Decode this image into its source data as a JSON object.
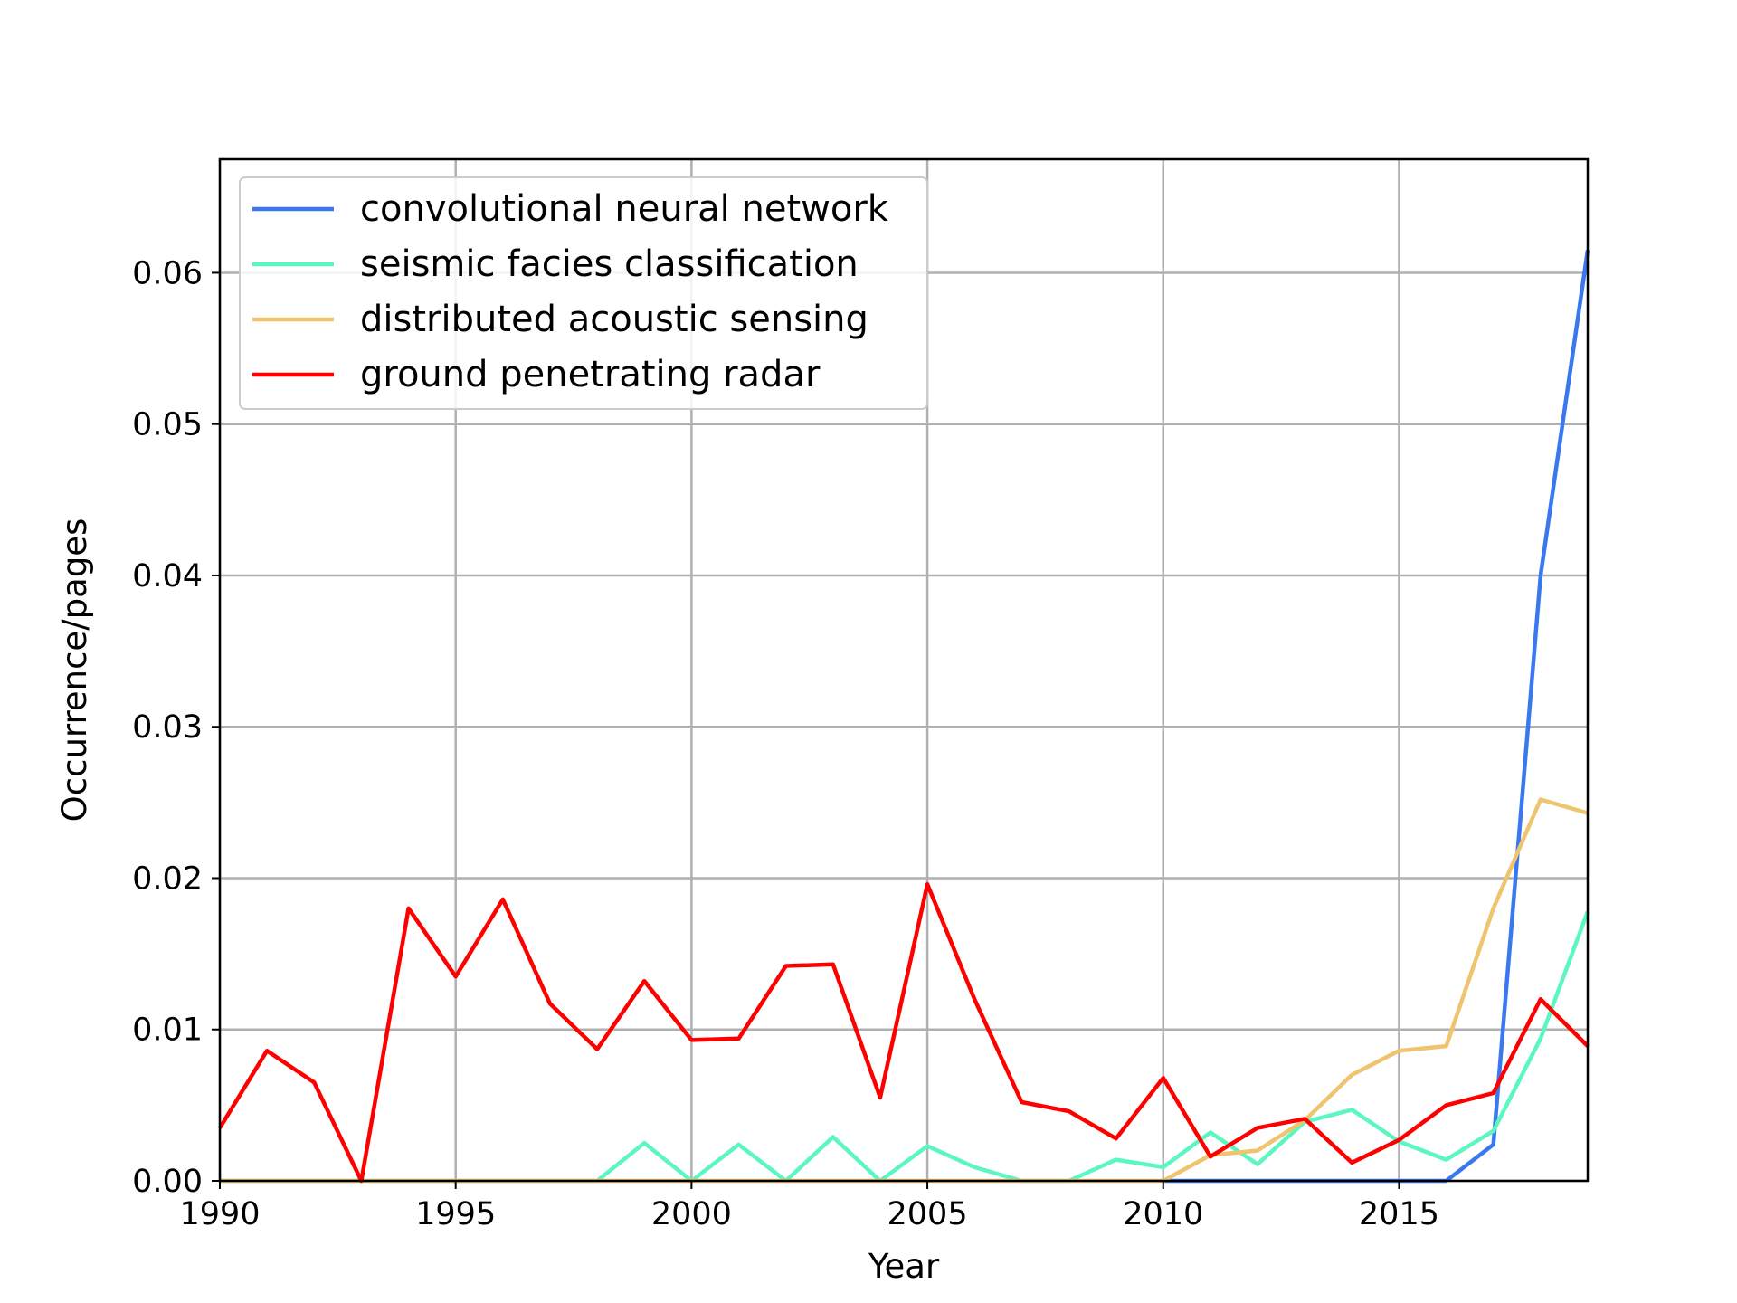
{
  "chart_data": {
    "type": "line",
    "title": "",
    "xlabel": "Year",
    "ylabel": "Occurrence/pages",
    "xlim": [
      1990,
      2019
    ],
    "ylim": [
      0,
      0.0675
    ],
    "grid": true,
    "legend_position": "upper-left",
    "x": [
      1990,
      1991,
      1992,
      1993,
      1994,
      1995,
      1996,
      1997,
      1998,
      1999,
      2000,
      2001,
      2002,
      2003,
      2004,
      2005,
      2006,
      2007,
      2008,
      2009,
      2010,
      2011,
      2012,
      2013,
      2014,
      2015,
      2016,
      2017,
      2018,
      2019
    ],
    "x_ticks": [
      1990,
      1995,
      2000,
      2005,
      2010,
      2015
    ],
    "x_tick_labels": [
      "1990",
      "1995",
      "2000",
      "2005",
      "2010",
      "2015"
    ],
    "y_ticks": [
      0,
      0.01,
      0.02,
      0.03,
      0.04,
      0.05,
      0.06
    ],
    "y_tick_labels": [
      "0.00",
      "0.01",
      "0.02",
      "0.03",
      "0.04",
      "0.05",
      "0.06"
    ],
    "series": [
      {
        "name": "convolutional neural network",
        "color": "#3a78f2",
        "values": [
          null,
          null,
          null,
          null,
          null,
          null,
          null,
          null,
          null,
          null,
          null,
          null,
          null,
          null,
          null,
          null,
          null,
          null,
          null,
          null,
          0,
          0,
          0,
          0,
          0,
          0,
          0,
          0.0024,
          0.04,
          0.0615
        ]
      },
      {
        "name": "seismic facies classification",
        "color": "#5cf7c0",
        "values": [
          0,
          0,
          0,
          0,
          0,
          0,
          0,
          0,
          0,
          0.0025,
          0,
          0.0024,
          0,
          0.0029,
          0,
          0.0023,
          0.0009,
          0,
          0,
          0.0014,
          0.0009,
          0.0032,
          0.0011,
          0.0039,
          0.0047,
          0.0026,
          0.0014,
          0.0033,
          0.0094,
          0.0178
        ]
      },
      {
        "name": "distributed acoustic sensing",
        "color": "#efc46e",
        "values": [
          0,
          0,
          0,
          0,
          0,
          0,
          0,
          0,
          0,
          0,
          0,
          0,
          0,
          0,
          0,
          0,
          0,
          0,
          0,
          0,
          0,
          0.0017,
          0.002,
          0.004,
          0.007,
          0.0086,
          0.0089,
          0.018,
          0.0252,
          0.0243
        ]
      },
      {
        "name": "ground penetrating radar",
        "color": "#ff0000",
        "values": [
          0.0035,
          0.0086,
          0.0065,
          0,
          0.018,
          0.0135,
          0.0186,
          0.0117,
          0.0087,
          0.0132,
          0.0093,
          0.0094,
          0.0142,
          0.0143,
          0.0055,
          0.0196,
          0.012,
          0.0052,
          0.0046,
          0.0028,
          0.0068,
          0.0016,
          0.0035,
          0.0041,
          0.0012,
          0.0027,
          0.005,
          0.0058,
          0.012,
          0.0089
        ]
      }
    ]
  }
}
